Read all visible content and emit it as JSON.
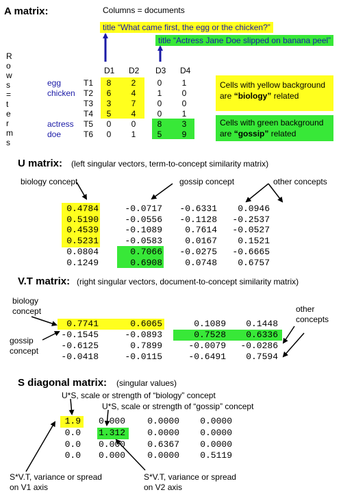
{
  "a_matrix": {
    "heading": "A matrix:",
    "columns_label": "Columns = documents",
    "rows_label_letters": [
      "R",
      "o",
      "w",
      "s",
      "=",
      "t",
      "e",
      "r",
      "m",
      "s"
    ],
    "title1": "title “What came first, the egg or the chicken?”",
    "title2": "title “Actress Jane Doe slipped on banana peel”",
    "col_headers": [
      "D1",
      "D2",
      "D3",
      "D4"
    ],
    "words": [
      "egg",
      "chicken",
      "",
      "",
      "actress",
      "doe"
    ],
    "term_ids": [
      "T1",
      "T2",
      "T3",
      "T4",
      "T5",
      "T6"
    ],
    "cells": [
      [
        "8",
        "2",
        "0",
        "1"
      ],
      [
        "6",
        "4",
        "1",
        "0"
      ],
      [
        "3",
        "7",
        "0",
        "0"
      ],
      [
        "5",
        "4",
        "0",
        "1"
      ],
      [
        "0",
        "0",
        "8",
        "3"
      ],
      [
        "0",
        "1",
        "5",
        "9"
      ]
    ],
    "legend_yellow": {
      "pre": "Cells with yellow background",
      "line2_pre": "are ",
      "bold": "“biology”",
      "post": " related"
    },
    "legend_green": {
      "pre": "Cells with green background",
      "line2_pre": "are ",
      "bold": "“gossip”",
      "post": " related"
    }
  },
  "u_matrix": {
    "heading": "U matrix:",
    "subtitle": "(left singular vectors, term-to-concept similarity matrix)",
    "label_biology": "biology concept",
    "label_gossip": "gossip concept",
    "label_other": "other concepts",
    "rows": [
      [
        "0.4784",
        "-0.0717",
        "-0.6331",
        "0.0946"
      ],
      [
        "0.5190",
        "-0.0556",
        "-0.1128",
        "-0.2537"
      ],
      [
        "0.4539",
        "-0.1089",
        "0.7614",
        "-0.0527"
      ],
      [
        "0.5231",
        "-0.0583",
        "0.0167",
        "0.1521"
      ],
      [
        "0.0804",
        "0.7066",
        "-0.0275",
        "-0.6665"
      ],
      [
        "0.1249",
        "0.6908",
        "0.0748",
        "0.6757"
      ]
    ]
  },
  "vt_matrix": {
    "heading": "V.T matrix:",
    "subtitle": "(right singular vectors, document-to-concept similarity matrix)",
    "label_biology_1": "biology",
    "label_biology_2": "concept",
    "label_gossip_1": "gossip",
    "label_gossip_2": "concept",
    "label_other_1": "other",
    "label_other_2": "concepts",
    "rows": [
      [
        "0.7741",
        "0.6065",
        "0.1089",
        "0.1448"
      ],
      [
        "-0.1545",
        "-0.0893",
        "0.7528",
        "0.6336"
      ],
      [
        "-0.6125",
        "0.7899",
        "-0.0079",
        "-0.0286"
      ],
      [
        "-0.0418",
        "-0.0115",
        "-0.6491",
        "0.7594"
      ]
    ]
  },
  "s_matrix": {
    "heading": "S diagonal matrix:",
    "subtitle": "(singular values)",
    "label_us_biology": "U*S, scale or strength of “biology” concept",
    "label_us_gossip": "U*S, scale or strength of “gossip” concept",
    "rows": [
      [
        "1.9",
        "0.000",
        "0.0000",
        "0.0000"
      ],
      [
        "0.0",
        "1.312",
        "0.0000",
        "0.0000"
      ],
      [
        "0.0",
        "0.000",
        "0.6367",
        "0.0000"
      ],
      [
        "0.0",
        "0.000",
        "0.0000",
        "0.5119"
      ]
    ],
    "label_sv1_1": "S*V.T, variance or spread",
    "label_sv1_2": "on V1 axis",
    "label_sv2_1": "S*V.T, variance or spread",
    "label_sv2_2": "on V2 axis"
  },
  "colors": {
    "yellow": "#ffff1e",
    "green": "#38e838",
    "blue_text": "#1a1aa6",
    "arrow_blue": "#1a1aa6"
  }
}
